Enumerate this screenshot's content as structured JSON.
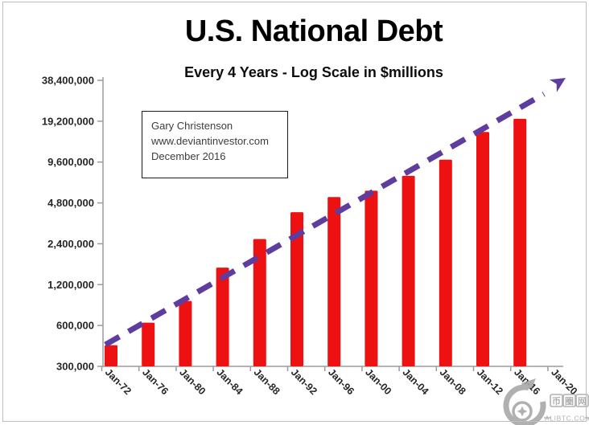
{
  "chart_data": {
    "type": "bar",
    "title": "U.S. National Debt",
    "subtitle": "Every 4 Years - Log Scale in $millions",
    "x_labels": [
      "Jan-72",
      "Jan-76",
      "Jan-80",
      "Jan-84",
      "Jan-88",
      "Jan-92",
      "Jan-96",
      "Jan-00",
      "Jan-04",
      "Jan-08",
      "Jan-12",
      "Jan-16",
      "Jan-20"
    ],
    "series": [
      {
        "name": "U.S. National Debt ($millions)",
        "values": [
          430000,
          630000,
          910000,
          1600000,
          2600000,
          4100000,
          5300000,
          5900000,
          7600000,
          10000000,
          16000000,
          20000000,
          null
        ]
      }
    ],
    "y_axis": {
      "scale": "log2",
      "unit": "$millions",
      "ticks": [
        300000,
        600000,
        1200000,
        2400000,
        4800000,
        9600000,
        19200000,
        38400000
      ],
      "tick_labels": [
        "300,000",
        "600,000",
        "1,200,000",
        "2,400,000",
        "4,800,000",
        "9,600,000",
        "19,200,000",
        "38,400,000"
      ],
      "range": [
        300000,
        38400000
      ]
    },
    "grid": false,
    "legend": false,
    "trendline": {
      "present": true,
      "style": "dashed",
      "shape": "straight-on-log-scale",
      "arrow": true
    },
    "annotation": {
      "lines": [
        "Gary Christenson",
        "www.deviantinvestor.com",
        "December 2016"
      ]
    },
    "colors": {
      "bar": "#ee1111",
      "trendline": "#5e3d9e",
      "axis": "#9b9b9b",
      "tick_text": "#262626",
      "watermark": "#a6a6a6"
    }
  },
  "watermark": {
    "logo_chars": [
      "币",
      "圈",
      "网"
    ],
    "site": "ALIBTC.COM"
  }
}
